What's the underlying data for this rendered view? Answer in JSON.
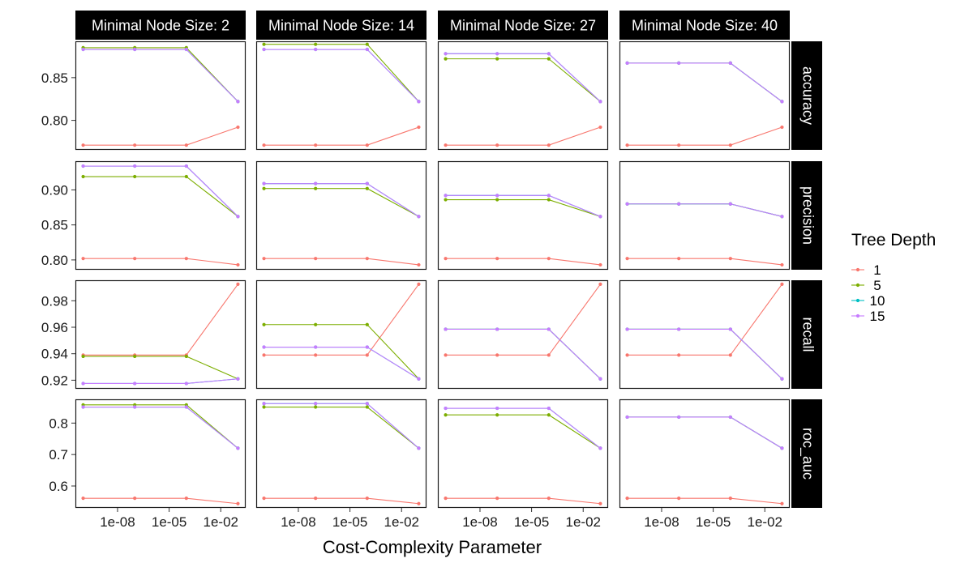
{
  "chart_data": {
    "type": "line",
    "xlabel": "Cost-Complexity Parameter",
    "x_scale": "log10",
    "x": [
      1e-10,
      1e-07,
      0.0001,
      0.1
    ],
    "x_ticks": [
      {
        "value": 1e-08,
        "label": "1e-08"
      },
      {
        "value": 1e-05,
        "label": "1e-05"
      },
      {
        "value": 0.01,
        "label": "1e-02"
      }
    ],
    "column_facets": [
      "Minimal Node Size: 2",
      "Minimal Node Size: 14",
      "Minimal Node Size: 27",
      "Minimal Node Size: 40"
    ],
    "row_facets": [
      "accuracy",
      "precision",
      "recall",
      "roc_auc"
    ],
    "legend": {
      "title": "Tree Depth",
      "placement": "right",
      "entries": [
        {
          "label": "1",
          "color": "#F8766D"
        },
        {
          "label": "5",
          "color": "#7CAE00"
        },
        {
          "label": "10",
          "color": "#00BFC4"
        },
        {
          "label": "15",
          "color": "#C77CFF"
        }
      ]
    },
    "rows": [
      {
        "metric": "accuracy",
        "ylim": [
          0.7655,
          0.8925
        ],
        "y_ticks": [
          {
            "value": 0.8,
            "label": "0.80"
          },
          {
            "value": 0.85,
            "label": "0.85"
          }
        ],
        "panels": [
          [
            [
              0.771,
              0.771,
              0.771,
              0.792
            ],
            [
              0.885,
              0.885,
              0.885,
              0.822
            ],
            [
              0.883,
              0.883,
              0.883,
              0.822
            ],
            [
              0.883,
              0.883,
              0.883,
              0.822
            ]
          ],
          [
            [
              0.771,
              0.771,
              0.771,
              0.792
            ],
            [
              0.889,
              0.889,
              0.889,
              0.822
            ],
            [
              0.883,
              0.883,
              0.883,
              0.822
            ],
            [
              0.883,
              0.883,
              0.883,
              0.822
            ]
          ],
          [
            [
              0.771,
              0.771,
              0.771,
              0.792
            ],
            [
              0.872,
              0.872,
              0.872,
              0.822
            ],
            [
              0.878,
              0.878,
              0.878,
              0.822
            ],
            [
              0.878,
              0.878,
              0.878,
              0.822
            ]
          ],
          [
            [
              0.771,
              0.771,
              0.771,
              0.792
            ],
            [
              0.867,
              0.867,
              0.867,
              0.822
            ],
            [
              0.867,
              0.867,
              0.867,
              0.822
            ],
            [
              0.867,
              0.867,
              0.867,
              0.822
            ]
          ]
        ]
      },
      {
        "metric": "precision",
        "ylim": [
          0.786,
          0.941
        ],
        "y_ticks": [
          {
            "value": 0.8,
            "label": "0.80"
          },
          {
            "value": 0.85,
            "label": "0.85"
          },
          {
            "value": 0.9,
            "label": "0.90"
          }
        ],
        "panels": [
          [
            [
              0.802,
              0.802,
              0.802,
              0.793
            ],
            [
              0.919,
              0.919,
              0.919,
              0.862
            ],
            [
              0.934,
              0.934,
              0.934,
              0.862
            ],
            [
              0.934,
              0.934,
              0.934,
              0.862
            ]
          ],
          [
            [
              0.802,
              0.802,
              0.802,
              0.793
            ],
            [
              0.902,
              0.902,
              0.902,
              0.862
            ],
            [
              0.909,
              0.909,
              0.909,
              0.862
            ],
            [
              0.909,
              0.909,
              0.909,
              0.862
            ]
          ],
          [
            [
              0.802,
              0.802,
              0.802,
              0.793
            ],
            [
              0.886,
              0.886,
              0.886,
              0.862
            ],
            [
              0.892,
              0.892,
              0.892,
              0.862
            ],
            [
              0.892,
              0.892,
              0.892,
              0.862
            ]
          ],
          [
            [
              0.802,
              0.802,
              0.802,
              0.793
            ],
            [
              0.88,
              0.88,
              0.88,
              0.862
            ],
            [
              0.88,
              0.88,
              0.88,
              0.862
            ],
            [
              0.88,
              0.88,
              0.88,
              0.862
            ]
          ]
        ]
      },
      {
        "metric": "recall",
        "ylim": [
          0.9135,
          0.9955
        ],
        "y_ticks": [
          {
            "value": 0.92,
            "label": "0.92"
          },
          {
            "value": 0.94,
            "label": "0.94"
          },
          {
            "value": 0.96,
            "label": "0.96"
          },
          {
            "value": 0.98,
            "label": "0.98"
          }
        ],
        "panels": [
          [
            [
              0.939,
              0.939,
              0.939,
              0.9925
            ],
            [
              0.938,
              0.938,
              0.938,
              0.921
            ],
            [
              0.9175,
              0.9175,
              0.9175,
              0.921
            ],
            [
              0.9175,
              0.9175,
              0.9175,
              0.921
            ]
          ],
          [
            [
              0.939,
              0.939,
              0.939,
              0.9925
            ],
            [
              0.962,
              0.962,
              0.962,
              0.921
            ],
            [
              0.945,
              0.945,
              0.945,
              0.921
            ],
            [
              0.945,
              0.945,
              0.945,
              0.921
            ]
          ],
          [
            [
              0.939,
              0.939,
              0.939,
              0.9925
            ],
            [
              0.9585,
              0.9585,
              0.9585,
              0.921
            ],
            [
              0.9585,
              0.9585,
              0.9585,
              0.921
            ],
            [
              0.9585,
              0.9585,
              0.9585,
              0.921
            ]
          ],
          [
            [
              0.939,
              0.939,
              0.939,
              0.9925
            ],
            [
              0.9585,
              0.9585,
              0.9585,
              0.921
            ],
            [
              0.9585,
              0.9585,
              0.9585,
              0.921
            ],
            [
              0.9585,
              0.9585,
              0.9585,
              0.921
            ]
          ]
        ]
      },
      {
        "metric": "roc_auc",
        "ylim": [
          0.5305,
          0.8755
        ],
        "y_ticks": [
          {
            "value": 0.6,
            "label": "0.6"
          },
          {
            "value": 0.7,
            "label": "0.7"
          },
          {
            "value": 0.8,
            "label": "0.8"
          }
        ],
        "panels": [
          [
            [
              0.561,
              0.561,
              0.561,
              0.544
            ],
            [
              0.858,
              0.858,
              0.858,
              0.72
            ],
            [
              0.851,
              0.851,
              0.851,
              0.72
            ],
            [
              0.851,
              0.851,
              0.851,
              0.72
            ]
          ],
          [
            [
              0.561,
              0.561,
              0.561,
              0.544
            ],
            [
              0.851,
              0.851,
              0.851,
              0.72
            ],
            [
              0.862,
              0.862,
              0.862,
              0.72
            ],
            [
              0.862,
              0.862,
              0.862,
              0.72
            ]
          ],
          [
            [
              0.561,
              0.561,
              0.561,
              0.544
            ],
            [
              0.826,
              0.826,
              0.826,
              0.72
            ],
            [
              0.847,
              0.847,
              0.847,
              0.72
            ],
            [
              0.847,
              0.847,
              0.847,
              0.72
            ]
          ],
          [
            [
              0.561,
              0.561,
              0.561,
              0.544
            ],
            [
              0.819,
              0.819,
              0.819,
              0.72
            ],
            [
              0.819,
              0.819,
              0.819,
              0.72
            ],
            [
              0.819,
              0.819,
              0.819,
              0.72
            ]
          ]
        ]
      }
    ]
  }
}
